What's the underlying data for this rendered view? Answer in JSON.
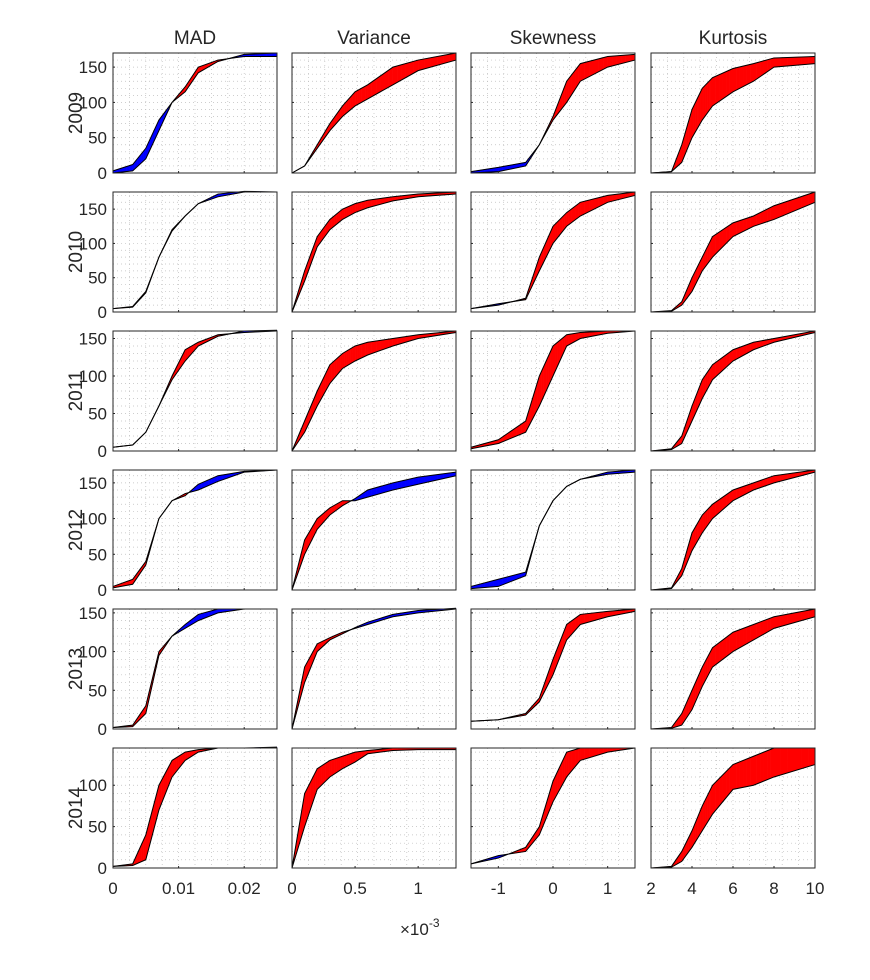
{
  "chart_data": {
    "type": "area",
    "grid": true,
    "colors": {
      "a_above": "#ff0000",
      "b_above": "#0000ff",
      "line": "#000000",
      "grid": "#bdbdbd"
    },
    "x_exponent_label": {
      "base": "×10",
      "exp": "-3",
      "column": 1
    },
    "columns": [
      {
        "title": "MAD",
        "xlim": [
          0,
          0.025
        ],
        "xticks": [
          0,
          0.01,
          0.02
        ],
        "xtick_labels": [
          "0",
          "0.01",
          "0.02"
        ],
        "x": [
          0,
          0.003,
          0.005,
          0.007,
          0.009,
          0.011,
          0.013,
          0.016,
          0.02,
          0.025
        ]
      },
      {
        "title": "Variance",
        "xlim": [
          0,
          1.3
        ],
        "xticks": [
          0,
          0.5,
          1
        ],
        "xtick_labels": [
          "0",
          "0.5",
          "1"
        ],
        "x": [
          0,
          0.1,
          0.2,
          0.3,
          0.4,
          0.5,
          0.6,
          0.8,
          1.0,
          1.3
        ]
      },
      {
        "title": "Skewness",
        "xlim": [
          -1.5,
          1.5
        ],
        "xticks": [
          -1,
          0,
          1
        ],
        "xtick_labels": [
          "-1",
          "0",
          "1"
        ],
        "x": [
          -1.5,
          -1,
          -0.5,
          -0.25,
          0,
          0.25,
          0.5,
          1,
          1.5
        ]
      },
      {
        "title": "Kurtosis",
        "xlim": [
          2,
          10
        ],
        "xticks": [
          2,
          4,
          6,
          8,
          10
        ],
        "xtick_labels": [
          "2",
          "4",
          "6",
          "8",
          "10"
        ],
        "x": [
          2,
          3,
          3.5,
          4,
          4.5,
          5,
          6,
          7,
          8,
          10
        ]
      }
    ],
    "rows": [
      {
        "label": "2009",
        "ylim": [
          0,
          170
        ],
        "yticks": [
          0,
          50,
          100,
          150
        ],
        "panels": [
          {
            "a": [
              0,
              3,
              20,
              60,
              100,
              122,
              150,
              160,
              165,
              165
            ],
            "b": [
              3,
              12,
              35,
              75,
              100,
              115,
              142,
              158,
              168,
              170
            ]
          },
          {
            "a": [
              0,
              10,
              40,
              70,
              95,
              115,
              125,
              150,
              160,
              170
            ],
            "b": [
              0,
              10,
              35,
              60,
              80,
              95,
              105,
              125,
              145,
              160
            ]
          },
          {
            "a": [
              0,
              2,
              10,
              40,
              80,
              130,
              155,
              165,
              168
            ],
            "b": [
              2,
              8,
              15,
              40,
              75,
              100,
              130,
              150,
              160
            ]
          },
          {
            "a": [
              0,
              2,
              40,
              90,
              120,
              135,
              148,
              155,
              163,
              165
            ],
            "b": [
              0,
              2,
              15,
              50,
              75,
              95,
              115,
              130,
              150,
              155
            ]
          }
        ]
      },
      {
        "label": "2010",
        "ylim": [
          0,
          175
        ],
        "yticks": [
          0,
          50,
          100,
          150
        ],
        "panels": [
          {
            "a": [
              5,
              8,
              30,
              80,
              120,
              140,
              158,
              168,
              175,
              175
            ],
            "b": [
              5,
              7,
              28,
              80,
              118,
              140,
              158,
              172,
              176,
              175
            ]
          },
          {
            "a": [
              0,
              60,
              110,
              135,
              150,
              158,
              163,
              168,
              172,
              175
            ],
            "b": [
              0,
              45,
              95,
              120,
              135,
              145,
              152,
              162,
              168,
              172
            ]
          },
          {
            "a": [
              5,
              10,
              20,
              80,
              125,
              145,
              160,
              170,
              175
            ],
            "b": [
              5,
              12,
              18,
              60,
              100,
              125,
              140,
              160,
              170
            ]
          },
          {
            "a": [
              0,
              2,
              15,
              50,
              80,
              110,
              130,
              140,
              155,
              175
            ],
            "b": [
              0,
              1,
              10,
              30,
              60,
              80,
              110,
              125,
              135,
              160
            ]
          }
        ]
      },
      {
        "label": "2011",
        "ylim": [
          0,
          160
        ],
        "yticks": [
          0,
          50,
          100,
          150
        ],
        "panels": [
          {
            "a": [
              5,
              8,
              25,
              60,
              100,
              135,
              145,
              155,
              158,
              160
            ],
            "b": [
              5,
              8,
              25,
              60,
              95,
              120,
              140,
              153,
              160,
              161
            ]
          },
          {
            "a": [
              0,
              40,
              80,
              115,
              130,
              140,
              145,
              150,
              155,
              160
            ],
            "b": [
              0,
              25,
              60,
              90,
              110,
              120,
              128,
              140,
              150,
              158
            ]
          },
          {
            "a": [
              5,
              15,
              40,
              100,
              140,
              155,
              158,
              160,
              160
            ],
            "b": [
              3,
              10,
              25,
              60,
              100,
              140,
              150,
              157,
              160
            ]
          },
          {
            "a": [
              0,
              3,
              20,
              60,
              95,
              115,
              135,
              145,
              150,
              160
            ],
            "b": [
              0,
              2,
              10,
              40,
              70,
              95,
              120,
              135,
              145,
              158
            ]
          }
        ]
      },
      {
        "label": "2012",
        "ylim": [
          0,
          168
        ],
        "yticks": [
          0,
          50,
          100,
          150
        ],
        "panels": [
          {
            "a": [
              5,
              15,
              40,
              100,
              125,
              135,
              140,
              152,
              165,
              168
            ],
            "b": [
              3,
              8,
              35,
              100,
              125,
              132,
              148,
              160,
              166,
              168
            ]
          },
          {
            "a": [
              0,
              70,
              100,
              115,
              125,
              125,
              130,
              140,
              148,
              160
            ],
            "b": [
              0,
              50,
              85,
              105,
              118,
              128,
              140,
              150,
              158,
              165
            ]
          },
          {
            "a": [
              2,
              5,
              20,
              90,
              125,
              145,
              155,
              162,
              165
            ],
            "b": [
              5,
              15,
              25,
              90,
              125,
              145,
              155,
              165,
              168
            ]
          },
          {
            "a": [
              0,
              3,
              30,
              80,
              105,
              120,
              140,
              150,
              160,
              168
            ],
            "b": [
              0,
              2,
              20,
              55,
              80,
              100,
              125,
              140,
              150,
              165
            ]
          }
        ]
      },
      {
        "label": "2013",
        "ylim": [
          0,
          155
        ],
        "yticks": [
          0,
          50,
          100,
          150
        ],
        "panels": [
          {
            "a": [
              2,
              5,
              30,
              100,
              120,
              130,
              140,
              150,
              155,
              155
            ],
            "b": [
              2,
              3,
              20,
              95,
              120,
              135,
              148,
              155,
              155,
              155
            ]
          },
          {
            "a": [
              0,
              80,
              110,
              118,
              125,
              130,
              135,
              145,
              150,
              155
            ],
            "b": [
              0,
              60,
              100,
              115,
              123,
              131,
              138,
              148,
              153,
              156
            ]
          },
          {
            "a": [
              10,
              12,
              20,
              40,
              90,
              135,
              148,
              152,
              155
            ],
            "b": [
              10,
              12,
              18,
              35,
              70,
              115,
              135,
              145,
              152
            ]
          },
          {
            "a": [
              0,
              2,
              20,
              50,
              80,
              105,
              125,
              135,
              145,
              155
            ],
            "b": [
              0,
              1,
              5,
              25,
              55,
              80,
              100,
              115,
              130,
              145
            ]
          }
        ]
      },
      {
        "label": "2014",
        "ylim": [
          0,
          145
        ],
        "yticks": [
          0,
          50,
          100
        ],
        "panels": [
          {
            "a": [
              2,
              5,
              40,
              100,
              130,
              140,
              143,
              145,
              145,
              145
            ],
            "b": [
              2,
              3,
              10,
              70,
              110,
              130,
              140,
              145,
              145,
              146
            ]
          },
          {
            "a": [
              0,
              90,
              120,
              130,
              135,
              140,
              142,
              145,
              145,
              145
            ],
            "b": [
              0,
              50,
              95,
              110,
              120,
              128,
              138,
              142,
              143,
              143
            ]
          },
          {
            "a": [
              5,
              12,
              25,
              50,
              105,
              140,
              145,
              145,
              145
            ],
            "b": [
              5,
              15,
              20,
              40,
              80,
              110,
              130,
              140,
              145
            ]
          },
          {
            "a": [
              0,
              2,
              20,
              45,
              75,
              100,
              125,
              135,
              145,
              145
            ],
            "b": [
              0,
              1,
              8,
              25,
              45,
              65,
              95,
              100,
              110,
              125
            ]
          }
        ]
      }
    ]
  }
}
